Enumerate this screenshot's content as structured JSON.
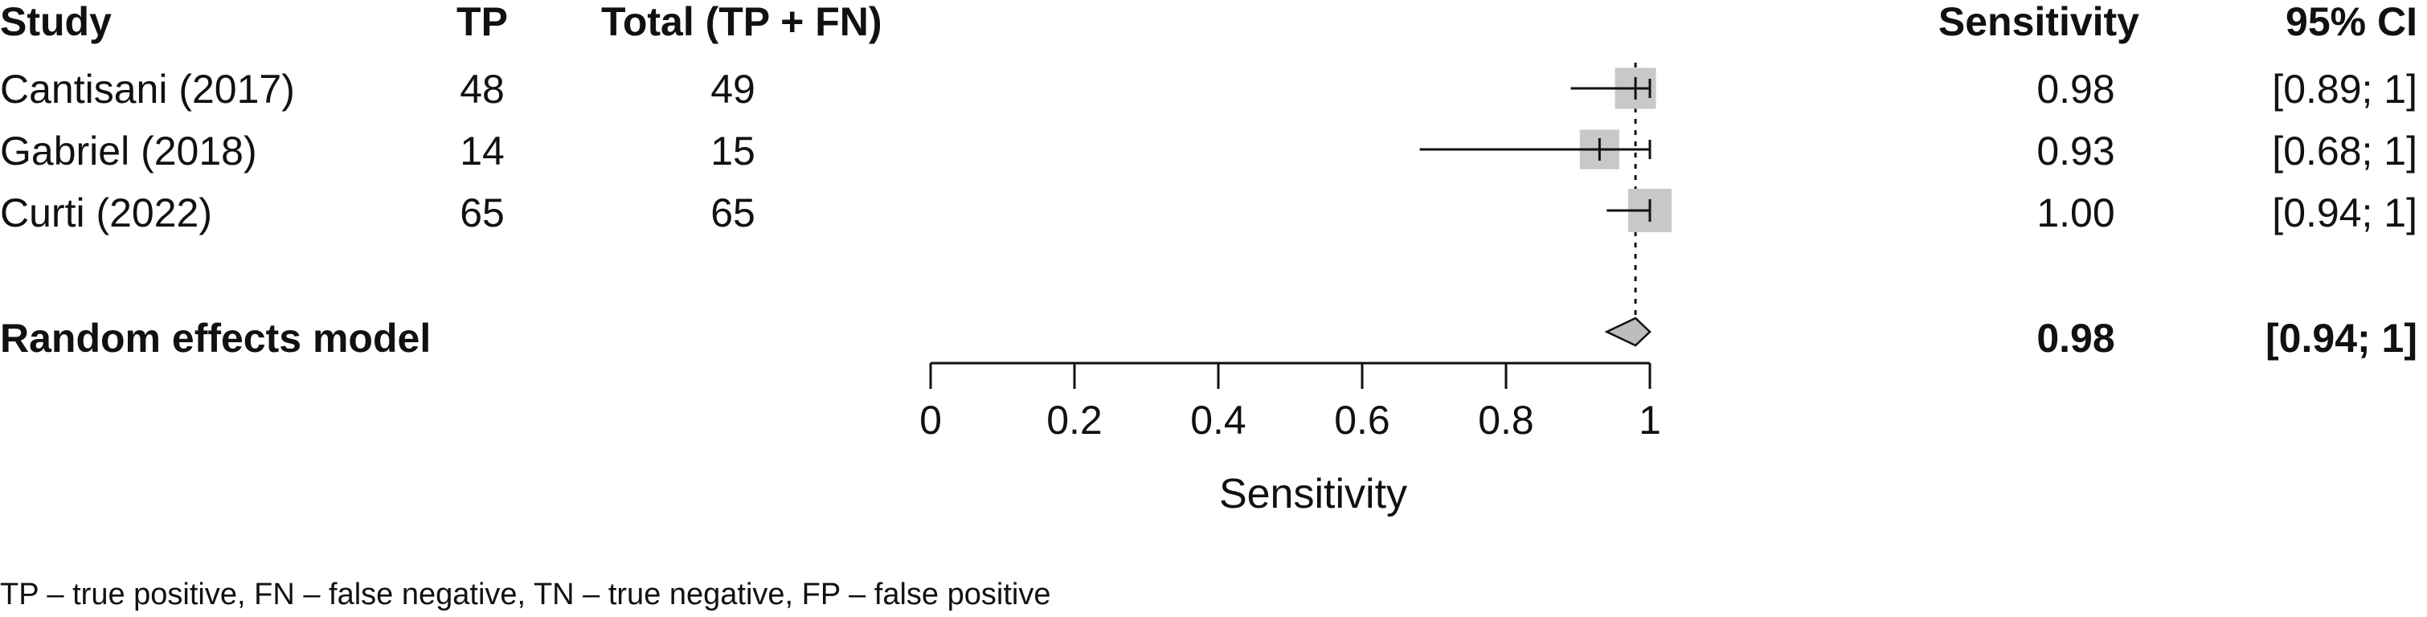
{
  "columns": {
    "study": "Study",
    "tp": "TP",
    "total": "Total (TP + FN)",
    "estimate": "Sensitivity",
    "ci": "95% CI"
  },
  "chart_data": {
    "type": "forest",
    "studies": [
      {
        "study": "Cantisani (2017)",
        "tp": "48",
        "total": "49",
        "estimate": 0.98,
        "ci_low": 0.89,
        "ci_high": 1.0,
        "estimate_label": "0.98",
        "ci_label": "[0.89; 1]"
      },
      {
        "study": "Gabriel (2018)",
        "tp": "14",
        "total": "15",
        "estimate": 0.93,
        "ci_low": 0.68,
        "ci_high": 1.0,
        "estimate_label": "0.93",
        "ci_label": "[0.68; 1]"
      },
      {
        "study": "Curti (2022)",
        "tp": "65",
        "total": "65",
        "estimate": 1.0,
        "ci_low": 0.94,
        "ci_high": 1.0,
        "estimate_label": "1.00",
        "ci_label": "[0.94; 1]"
      }
    ],
    "weights_relative": [
      0.85,
      0.82,
      0.9
    ],
    "summary": {
      "label": "Random effects model",
      "estimate": 0.98,
      "ci_low": 0.94,
      "ci_high": 1.0,
      "estimate_label": "0.98",
      "ci_label": "[0.94; 1]"
    },
    "reference_line": 0.98,
    "xlim": [
      0,
      1
    ],
    "xticks": [
      0,
      0.2,
      0.4,
      0.6,
      0.8,
      1
    ],
    "xtick_labels": [
      "0",
      "0.2",
      "0.4",
      "0.6",
      "0.8",
      "1"
    ],
    "xlabel": "Sensitivity",
    "colors": {
      "square": "#c8c8c8",
      "diamond": "#bdbdbd",
      "line": "#111111"
    }
  },
  "footnote": "TP – true positive, FN – false negative, TN – true negative, FP – false positive"
}
